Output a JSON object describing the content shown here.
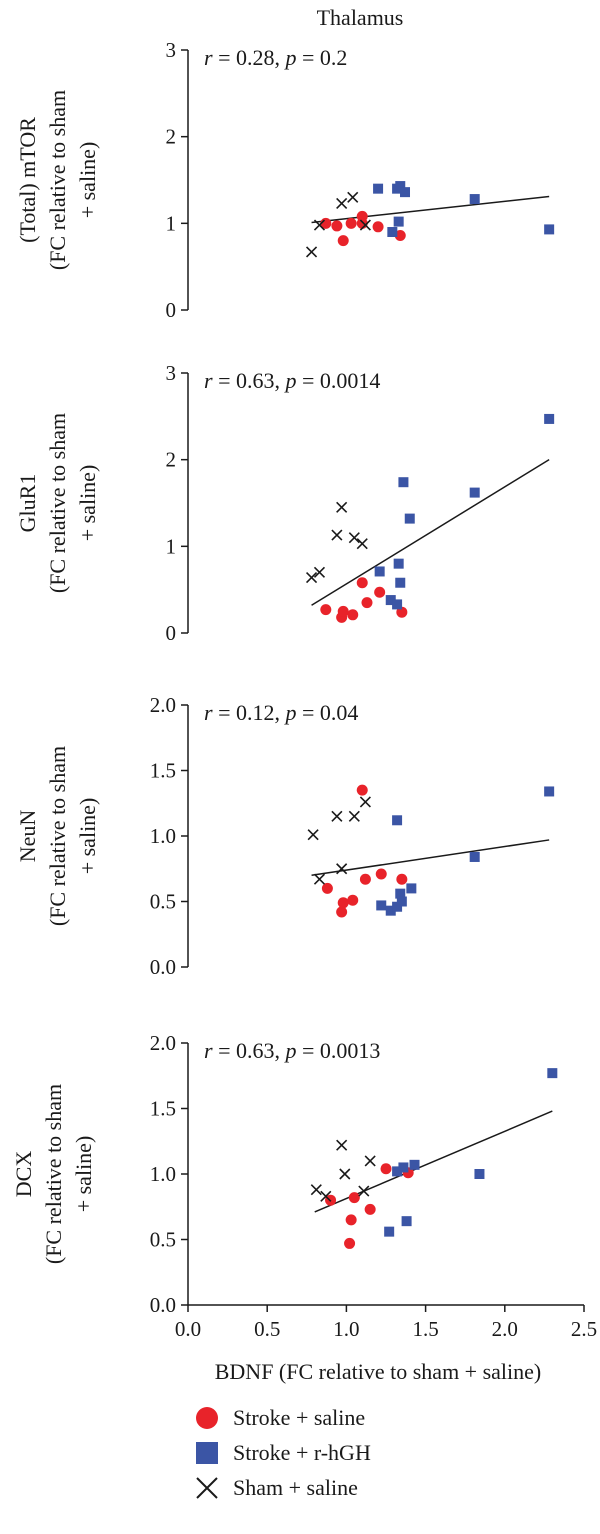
{
  "figure": {
    "title": "Thalamus",
    "xlabel": "BDNF (FC relative to sham + saline)"
  },
  "colors": {
    "stroke_saline": "#e8232a",
    "stroke_rhgh": "#3b55a5",
    "sham_saline": "#1a1a1a"
  },
  "legend": [
    {
      "label": "Stroke + saline",
      "marker": "circle",
      "color": "#e8232a"
    },
    {
      "label": "Stroke + r-hGH",
      "marker": "square",
      "color": "#3b55a5"
    },
    {
      "label": "Sham + saline",
      "marker": "cross",
      "color": "#1a1a1a"
    }
  ],
  "chart_data": [
    {
      "type": "scatter",
      "ylabel_lines": [
        "(Total) mTOR",
        "(FC relative to sham",
        "+ saline)"
      ],
      "stat": {
        "r": "0.28",
        "p": "0.2"
      },
      "xlim": [
        0,
        2.5
      ],
      "ylim": [
        0,
        3
      ],
      "yticks": [
        "0",
        "1",
        "2",
        "3"
      ],
      "show_x_axis": false,
      "grid": false,
      "fit": {
        "x": [
          0.78,
          2.28
        ],
        "y": [
          1.01,
          1.31
        ]
      },
      "series": [
        {
          "name": "Stroke + saline",
          "marker": "circle",
          "points": [
            [
              0.87,
              1.0
            ],
            [
              0.94,
              0.97
            ],
            [
              0.98,
              0.8
            ],
            [
              1.03,
              1.0
            ],
            [
              1.1,
              1.08
            ],
            [
              1.1,
              1.0
            ],
            [
              1.2,
              0.96
            ],
            [
              1.34,
              0.86
            ]
          ]
        },
        {
          "name": "Stroke + r-hGH",
          "marker": "square",
          "points": [
            [
              1.2,
              1.4
            ],
            [
              1.29,
              0.9
            ],
            [
              1.32,
              1.4
            ],
            [
              1.34,
              1.43
            ],
            [
              1.33,
              1.02
            ],
            [
              1.37,
              1.36
            ],
            [
              1.81,
              1.28
            ],
            [
              2.28,
              0.93
            ]
          ]
        },
        {
          "name": "Sham + saline",
          "marker": "cross",
          "points": [
            [
              0.78,
              0.67
            ],
            [
              0.83,
              0.98
            ],
            [
              0.97,
              1.23
            ],
            [
              1.04,
              1.3
            ],
            [
              1.12,
              0.98
            ]
          ]
        }
      ]
    },
    {
      "type": "scatter",
      "ylabel_lines": [
        "GluR1",
        "(FC relative to sham",
        "+ saline)"
      ],
      "stat": {
        "r": "0.63",
        "p": "0.0014"
      },
      "xlim": [
        0,
        2.5
      ],
      "ylim": [
        0,
        3
      ],
      "yticks": [
        "0",
        "1",
        "2",
        "3"
      ],
      "show_x_axis": false,
      "grid": false,
      "fit": {
        "x": [
          0.78,
          2.28
        ],
        "y": [
          0.32,
          2.0
        ]
      },
      "series": [
        {
          "name": "Stroke + saline",
          "marker": "circle",
          "points": [
            [
              0.87,
              0.27
            ],
            [
              0.97,
              0.18
            ],
            [
              0.98,
              0.25
            ],
            [
              1.04,
              0.21
            ],
            [
              1.1,
              0.58
            ],
            [
              1.13,
              0.35
            ],
            [
              1.21,
              0.47
            ],
            [
              1.35,
              0.24
            ]
          ]
        },
        {
          "name": "Stroke + r-hGH",
          "marker": "square",
          "points": [
            [
              1.21,
              0.71
            ],
            [
              1.28,
              0.38
            ],
            [
              1.32,
              0.33
            ],
            [
              1.33,
              0.8
            ],
            [
              1.34,
              0.58
            ],
            [
              1.36,
              1.74
            ],
            [
              1.4,
              1.32
            ],
            [
              1.81,
              1.62
            ],
            [
              2.28,
              2.47
            ]
          ]
        },
        {
          "name": "Sham + saline",
          "marker": "cross",
          "points": [
            [
              0.78,
              0.64
            ],
            [
              0.83,
              0.7
            ],
            [
              0.94,
              1.13
            ],
            [
              0.97,
              1.45
            ],
            [
              1.05,
              1.1
            ],
            [
              1.1,
              1.03
            ]
          ]
        }
      ]
    },
    {
      "type": "scatter",
      "ylabel_lines": [
        "NeuN",
        "(FC relative to sham",
        "+ saline)"
      ],
      "stat": {
        "r": "0.12",
        "p": "0.04"
      },
      "xlim": [
        0,
        2.5
      ],
      "ylim": [
        0,
        2
      ],
      "yticks": [
        "0.0",
        "0.5",
        "1.0",
        "1.5",
        "2.0"
      ],
      "show_x_axis": false,
      "grid": false,
      "fit": {
        "x": [
          0.78,
          2.28
        ],
        "y": [
          0.7,
          0.97
        ]
      },
      "series": [
        {
          "name": "Stroke + saline",
          "marker": "circle",
          "points": [
            [
              0.88,
              0.6
            ],
            [
              0.97,
              0.42
            ],
            [
              0.98,
              0.49
            ],
            [
              1.04,
              0.51
            ],
            [
              1.1,
              1.35
            ],
            [
              1.12,
              0.67
            ],
            [
              1.22,
              0.71
            ],
            [
              1.35,
              0.67
            ]
          ]
        },
        {
          "name": "Stroke + r-hGH",
          "marker": "square",
          "points": [
            [
              1.22,
              0.47
            ],
            [
              1.28,
              0.43
            ],
            [
              1.32,
              0.46
            ],
            [
              1.32,
              1.12
            ],
            [
              1.34,
              0.56
            ],
            [
              1.35,
              0.5
            ],
            [
              1.41,
              0.6
            ],
            [
              1.81,
              0.84
            ],
            [
              2.28,
              1.34
            ]
          ]
        },
        {
          "name": "Sham + saline",
          "marker": "cross",
          "points": [
            [
              0.79,
              1.01
            ],
            [
              0.83,
              0.67
            ],
            [
              0.94,
              1.15
            ],
            [
              0.97,
              0.75
            ],
            [
              1.05,
              1.15
            ],
            [
              1.12,
              1.26
            ]
          ]
        }
      ]
    },
    {
      "type": "scatter",
      "ylabel_lines": [
        "DCX",
        "(FC relative to sham",
        "+ saline)"
      ],
      "stat": {
        "r": "0.63",
        "p": "0.0013"
      },
      "xlim": [
        0,
        2.5
      ],
      "ylim": [
        0,
        2
      ],
      "yticks": [
        "0.0",
        "0.5",
        "1.0",
        "1.5",
        "2.0"
      ],
      "xticks": [
        "0.0",
        "0.5",
        "1.0",
        "1.5",
        "2.0",
        "2.5"
      ],
      "show_x_axis": true,
      "grid": false,
      "fit": {
        "x": [
          0.8,
          2.3
        ],
        "y": [
          0.71,
          1.48
        ]
      },
      "series": [
        {
          "name": "Stroke + saline",
          "marker": "circle",
          "points": [
            [
              0.9,
              0.8
            ],
            [
              1.02,
              0.47
            ],
            [
              1.03,
              0.65
            ],
            [
              1.05,
              0.82
            ],
            [
              1.15,
              0.73
            ],
            [
              1.25,
              1.04
            ],
            [
              1.39,
              1.01
            ]
          ]
        },
        {
          "name": "Stroke + r-hGH",
          "marker": "square",
          "points": [
            [
              1.27,
              0.56
            ],
            [
              1.32,
              1.02
            ],
            [
              1.36,
              1.05
            ],
            [
              1.38,
              0.64
            ],
            [
              1.43,
              1.07
            ],
            [
              1.84,
              1.0
            ],
            [
              2.3,
              1.77
            ]
          ]
        },
        {
          "name": "Sham + saline",
          "marker": "cross",
          "points": [
            [
              0.81,
              0.88
            ],
            [
              0.87,
              0.83
            ],
            [
              0.97,
              1.22
            ],
            [
              0.99,
              1.0
            ],
            [
              1.11,
              0.87
            ],
            [
              1.15,
              1.1
            ]
          ]
        }
      ]
    }
  ]
}
